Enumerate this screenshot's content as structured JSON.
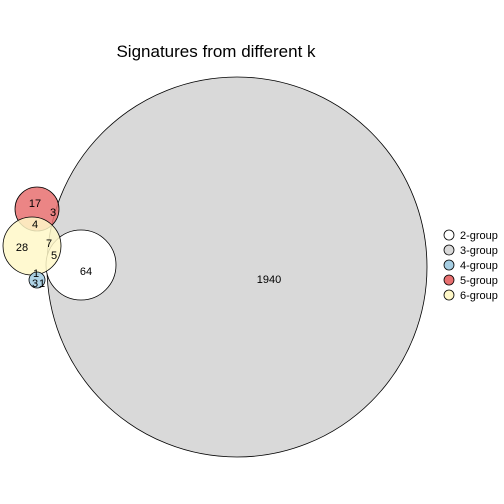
{
  "chart_data": {
    "type": "venn",
    "title": "Signatures from different k",
    "sets": [
      {
        "name": "2-group",
        "color": "#ffffff"
      },
      {
        "name": "3-group",
        "color": "#d9d9d9"
      },
      {
        "name": "4-group",
        "color": "#a6cee3"
      },
      {
        "name": "5-group",
        "color": "#e87070"
      },
      {
        "name": "6-group",
        "color": "#fff8c8"
      }
    ],
    "region_counts": [
      {
        "label": "1940"
      },
      {
        "label": "64"
      },
      {
        "label": "28"
      },
      {
        "label": "17"
      },
      {
        "label": "7"
      },
      {
        "label": "5"
      },
      {
        "label": "4"
      },
      {
        "label": "3"
      },
      {
        "label": "3"
      },
      {
        "label": "1"
      },
      {
        "label": "1"
      }
    ],
    "legend_position": "right"
  }
}
